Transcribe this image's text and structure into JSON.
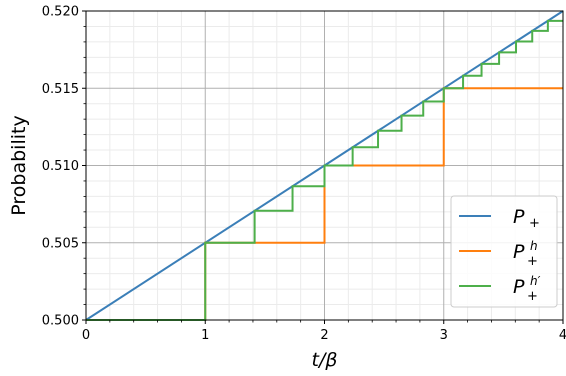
{
  "chart_data": {
    "type": "line",
    "title": "",
    "xlabel": "t/β",
    "ylabel": "Probability",
    "xlim": [
      0,
      4
    ],
    "ylim": [
      0.5,
      0.52
    ],
    "x_ticks": [
      "0",
      "1",
      "2",
      "3",
      "4"
    ],
    "y_ticks": [
      "0.500",
      "0.505",
      "0.510",
      "0.515",
      "0.520"
    ],
    "grid": true,
    "minor_grid": true,
    "legend_position": "lower-right",
    "series": [
      {
        "name": "P+",
        "legend_main": "P",
        "legend_sub": "+",
        "legend_sup": "",
        "color": "#3b7fb8",
        "kind": "line",
        "points": [
          [
            0,
            0.5
          ],
          [
            4,
            0.52
          ]
        ]
      },
      {
        "name": "P+^h",
        "legend_main": "P",
        "legend_sub": "+",
        "legend_sup": "h",
        "color": "#ff7f0e",
        "kind": "step",
        "points": [
          [
            0,
            0.5
          ],
          [
            1,
            0.5
          ],
          [
            1,
            0.505
          ],
          [
            2,
            0.505
          ],
          [
            2,
            0.51
          ],
          [
            3,
            0.51
          ],
          [
            3,
            0.515
          ],
          [
            4,
            0.515
          ]
        ]
      },
      {
        "name": "P+^h'",
        "legend_main": "P",
        "legend_sub": "+",
        "legend_sup": "h′",
        "color": "#4daf4a",
        "kind": "step",
        "points": [
          [
            0,
            0.5
          ],
          [
            1,
            0.5
          ],
          [
            1,
            0.505
          ],
          [
            1.414,
            0.505
          ],
          [
            1.414,
            0.50707
          ],
          [
            1.732,
            0.50707
          ],
          [
            1.732,
            0.50866
          ],
          [
            2,
            0.50866
          ],
          [
            2,
            0.51
          ],
          [
            2.236,
            0.51
          ],
          [
            2.236,
            0.51118
          ],
          [
            2.449,
            0.51118
          ],
          [
            2.449,
            0.51225
          ],
          [
            2.646,
            0.51225
          ],
          [
            2.646,
            0.51323
          ],
          [
            2.828,
            0.51323
          ],
          [
            2.828,
            0.51414
          ],
          [
            3,
            0.51414
          ],
          [
            3,
            0.515
          ],
          [
            3.162,
            0.515
          ],
          [
            3.162,
            0.51581
          ],
          [
            3.317,
            0.51581
          ],
          [
            3.317,
            0.51658
          ],
          [
            3.464,
            0.51658
          ],
          [
            3.464,
            0.51732
          ],
          [
            3.606,
            0.51732
          ],
          [
            3.606,
            0.51803
          ],
          [
            3.742,
            0.51803
          ],
          [
            3.742,
            0.51871
          ],
          [
            3.873,
            0.51871
          ],
          [
            3.873,
            0.51936
          ],
          [
            4,
            0.51936
          ]
        ]
      }
    ]
  }
}
